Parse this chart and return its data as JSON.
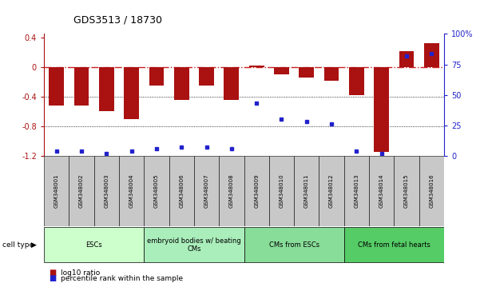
{
  "title": "GDS3513 / 18730",
  "samples": [
    "GSM348001",
    "GSM348002",
    "GSM348003",
    "GSM348004",
    "GSM348005",
    "GSM348006",
    "GSM348007",
    "GSM348008",
    "GSM348009",
    "GSM348010",
    "GSM348011",
    "GSM348012",
    "GSM348013",
    "GSM348014",
    "GSM348015",
    "GSM348016"
  ],
  "log10_ratio": [
    -0.52,
    -0.52,
    -0.6,
    -0.7,
    -0.25,
    -0.44,
    -0.25,
    -0.44,
    0.02,
    -0.1,
    -0.14,
    -0.18,
    -0.38,
    -1.15,
    0.22,
    0.33
  ],
  "percentile_rank": [
    4,
    4,
    2,
    4,
    6,
    7,
    7,
    6,
    43,
    30,
    28,
    26,
    4,
    2,
    82,
    84
  ],
  "cell_types": [
    {
      "label": "ESCs",
      "start": 0,
      "end": 4,
      "color": "#ccffcc"
    },
    {
      "label": "embryoid bodies w/ beating\nCMs",
      "start": 4,
      "end": 8,
      "color": "#aaeebb"
    },
    {
      "label": "CMs from ESCs",
      "start": 8,
      "end": 12,
      "color": "#88dd99"
    },
    {
      "label": "CMs from fetal hearts",
      "start": 12,
      "end": 16,
      "color": "#55cc66"
    }
  ],
  "ylim_left": [
    -1.2,
    0.45
  ],
  "ylim_right": [
    0,
    100
  ],
  "bar_color": "#aa1111",
  "dot_color": "#2222cc",
  "zero_line_color": "#cc2222",
  "right_axis_color": "#2222cc",
  "right_ticks": [
    0,
    25,
    50,
    75,
    100
  ],
  "right_tick_labels": [
    "0",
    "25",
    "50",
    "75",
    "100%"
  ],
  "left_ticks": [
    -1.2,
    -0.8,
    -0.4,
    0,
    0.4
  ],
  "label_box_color": "#c8c8c8",
  "legend_items": [
    {
      "color": "#aa1111",
      "label": "log10 ratio"
    },
    {
      "color": "#2222cc",
      "label": "percentile rank within the sample"
    }
  ]
}
